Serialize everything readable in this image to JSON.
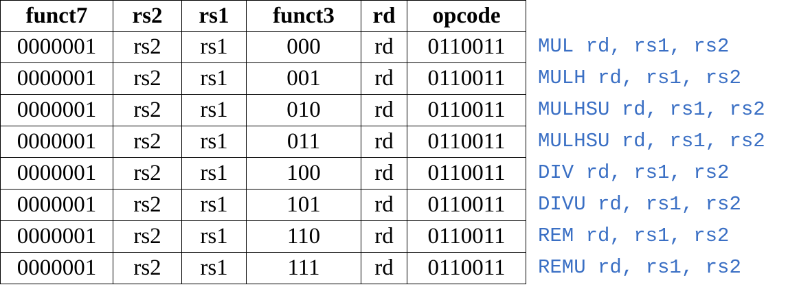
{
  "table": {
    "header": [
      "funct7",
      "rs2",
      "rs1",
      "funct3",
      "rd",
      "opcode"
    ],
    "rows": [
      [
        "0000001",
        "rs2",
        "rs1",
        "000",
        "rd",
        "0110011"
      ],
      [
        "0000001",
        "rs2",
        "rs1",
        "001",
        "rd",
        "0110011"
      ],
      [
        "0000001",
        "rs2",
        "rs1",
        "010",
        "rd",
        "0110011"
      ],
      [
        "0000001",
        "rs2",
        "rs1",
        "011",
        "rd",
        "0110011"
      ],
      [
        "0000001",
        "rs2",
        "rs1",
        "100",
        "rd",
        "0110011"
      ],
      [
        "0000001",
        "rs2",
        "rs1",
        "101",
        "rd",
        "0110011"
      ],
      [
        "0000001",
        "rs2",
        "rs1",
        "110",
        "rd",
        "0110011"
      ],
      [
        "0000001",
        "rs2",
        "rs1",
        "111",
        "rd",
        "0110011"
      ]
    ]
  },
  "instructions": [
    "MUL rd, rs1, rs2",
    "MULH rd, rs1, rs2",
    "MULHSU rd, rs1, rs2",
    "MULHSU rd, rs1, rs2",
    "DIV rd, rs1, rs2",
    "DIVU rd, rs1, rs2",
    "REM rd, rs1, rs2",
    "REMU rd, rs1, rs2"
  ]
}
